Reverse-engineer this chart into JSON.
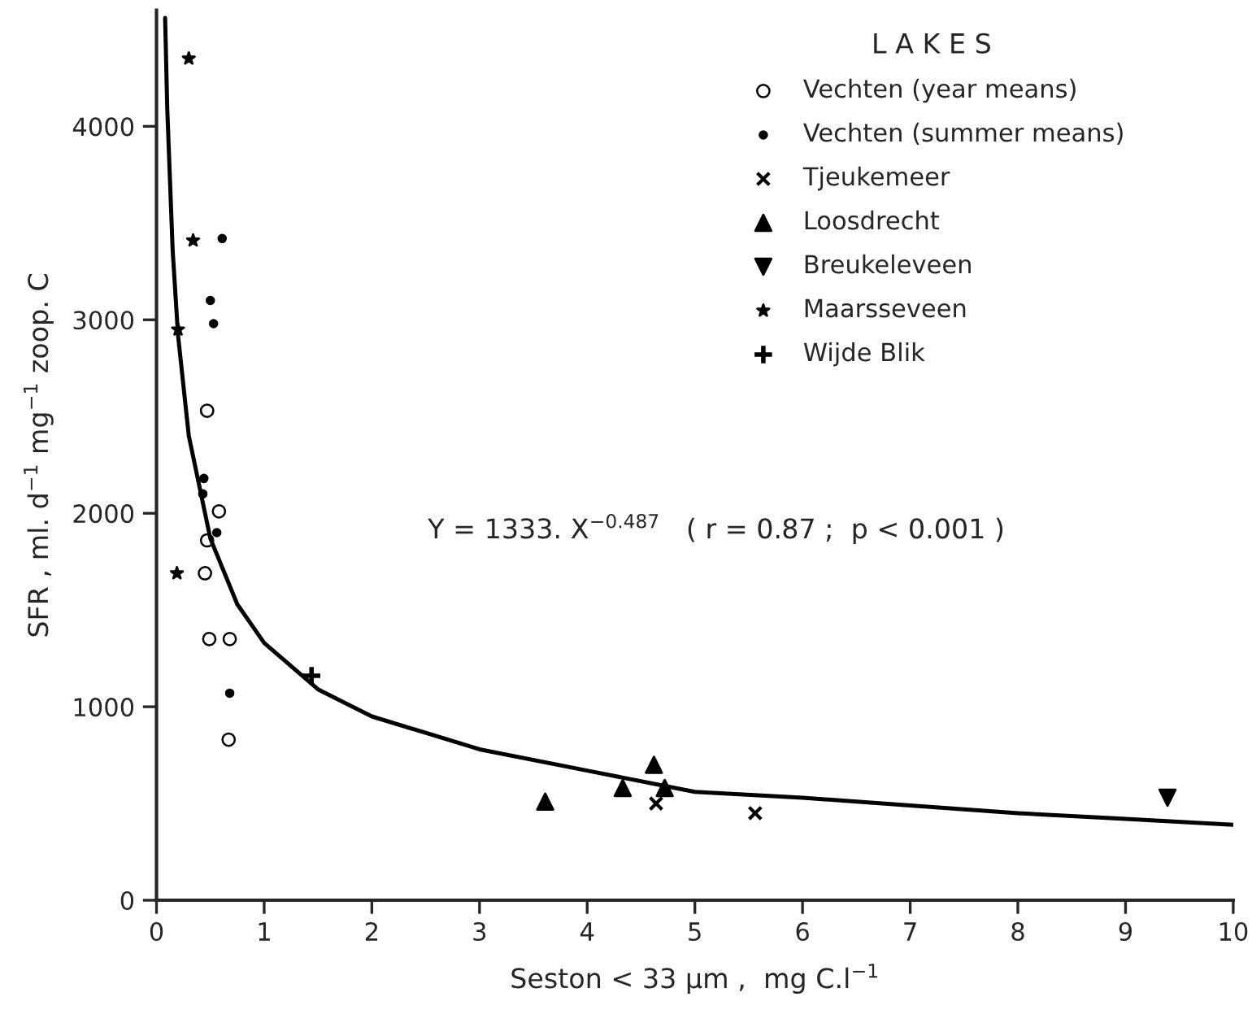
{
  "chart_data": {
    "type": "scatter",
    "xlabel": "Seston < 33 µm ,  mg C.l$^{−1}$",
    "ylabel": "SFR , ml. d$^{−1}$ mg$^{−1}$ zoop. C",
    "legend_title": "L A K E S",
    "xlim": [
      0,
      10
    ],
    "ylim": [
      0,
      4600
    ],
    "xticks": [
      0,
      1,
      2,
      3,
      4,
      5,
      6,
      7,
      8,
      9,
      10
    ],
    "yticks": [
      0,
      1000,
      2000,
      3000,
      4000
    ],
    "grid": false,
    "legend": "top right",
    "annotations": [
      {
        "text": "Y = 1333. X$^{−0.487}$   ( r = 0.87 ;  p < 0.001 )"
      }
    ],
    "series": [
      {
        "name": "Vechten (year means)",
        "marker": "open_circle",
        "color": "#000000",
        "x": [
          0.47,
          0.58,
          0.47,
          0.45,
          0.49,
          0.68,
          0.67
        ],
        "values": [
          2530,
          2010,
          1860,
          1690,
          1350,
          1350,
          830
        ]
      },
      {
        "name": "Vechten (summer means)",
        "marker": "dot",
        "color": "#000000",
        "x": [
          0.61,
          0.5,
          0.53,
          0.44,
          0.43,
          0.56,
          0.68
        ],
        "values": [
          3420,
          3100,
          2980,
          2180,
          2100,
          1900,
          1070
        ]
      },
      {
        "name": "Tjeukemeer",
        "marker": "x",
        "color": "#000000",
        "x": [
          4.64,
          5.56
        ],
        "values": [
          500,
          450
        ]
      },
      {
        "name": "Loosdrecht",
        "marker": "triangle",
        "color": "#000000",
        "x": [
          3.61,
          4.33,
          4.62,
          4.72
        ],
        "values": [
          510,
          580,
          700,
          580
        ]
      },
      {
        "name": "Breukeleveen",
        "marker": "triangle_down",
        "color": "#000000",
        "x": [
          9.39
        ],
        "values": [
          530
        ]
      },
      {
        "name": "Maarsseveen",
        "marker": "star",
        "color": "#000000",
        "x": [
          0.3,
          0.34,
          0.2,
          0.19
        ],
        "values": [
          4350,
          3410,
          2950,
          1690
        ]
      },
      {
        "name": "Wijde Blik",
        "marker": "cross",
        "color": "#000000",
        "x": [
          1.44
        ],
        "values": [
          1160
        ]
      },
      {
        "type": "line",
        "color": "#000000",
        "x": [
          0.08,
          0.1,
          0.15,
          0.2,
          0.3,
          0.5,
          0.75,
          1,
          1.5,
          2,
          3,
          4,
          5,
          6,
          7,
          8,
          9,
          10
        ],
        "values": [
          4560,
          4090,
          3360,
          2920,
          2400,
          1870,
          1530,
          1330,
          1090,
          950,
          780,
          670,
          560,
          530,
          490,
          450,
          420,
          390
        ]
      }
    ]
  }
}
